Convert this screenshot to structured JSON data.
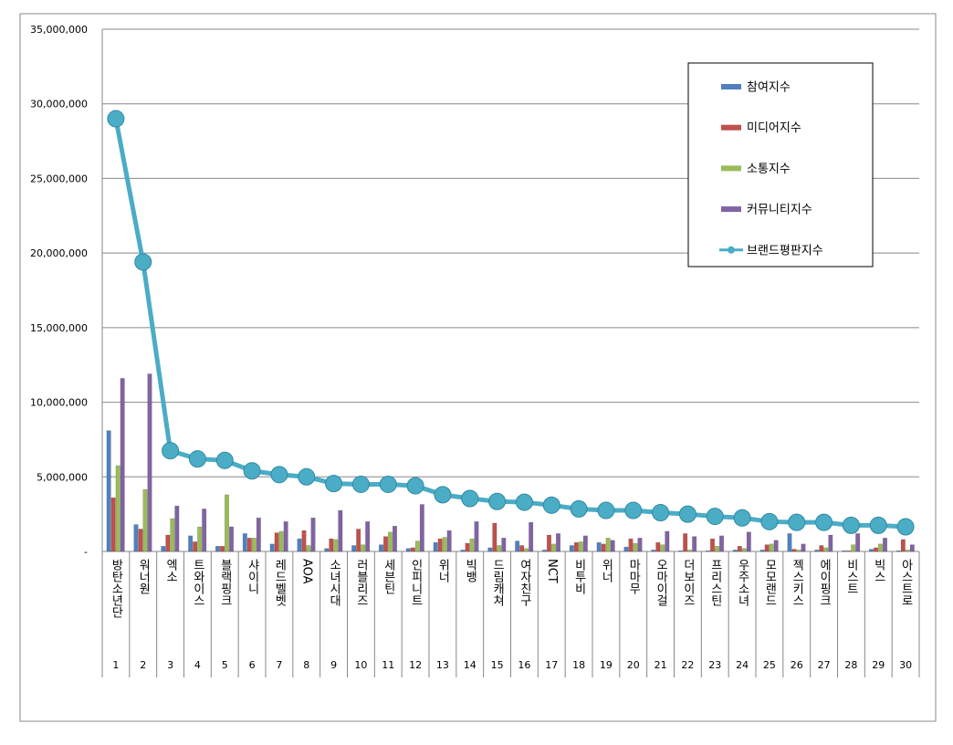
{
  "chart_data": {
    "type": "bar",
    "categories": [
      "방탄소년단",
      "워너원",
      "엑소",
      "트와이스",
      "블랙핑크",
      "샤이니",
      "레드벨벳",
      "AOA",
      "소녀시대",
      "러블리즈",
      "세븐틴",
      "인피니트",
      "위너",
      "빅뱅",
      "드림캐쳐",
      "여자친구",
      "NCT",
      "비투비",
      "위너",
      "마마무",
      "오마이걸",
      "더보이즈",
      "프리스틴",
      "우주소녀",
      "모모랜드",
      "젝스키스",
      "에이핑크",
      "비스트",
      "빅스",
      "아스트로"
    ],
    "rank_labels": [
      1,
      2,
      3,
      4,
      5,
      6,
      7,
      8,
      9,
      10,
      11,
      12,
      13,
      14,
      15,
      16,
      17,
      18,
      19,
      20,
      21,
      22,
      23,
      24,
      25,
      26,
      27,
      28,
      29,
      30
    ],
    "series": [
      {
        "name": "참여지수",
        "color": "#4f81bd",
        "type": "bar",
        "values": [
          8100000,
          1800000,
          350000,
          1050000,
          350000,
          1200000,
          500000,
          850000,
          200000,
          400000,
          450000,
          200000,
          600000,
          100000,
          250000,
          700000,
          100000,
          400000,
          600000,
          300000,
          100000,
          50000,
          50000,
          100000,
          100000,
          1200000,
          100000,
          50000,
          150000,
          50000
        ]
      },
      {
        "name": "미디어지수",
        "color": "#c0504d",
        "type": "bar",
        "values": [
          3600000,
          1500000,
          1100000,
          650000,
          350000,
          900000,
          1250000,
          1400000,
          850000,
          1500000,
          1000000,
          250000,
          850000,
          550000,
          1900000,
          400000,
          1100000,
          600000,
          500000,
          850000,
          600000,
          1200000,
          850000,
          350000,
          450000,
          150000,
          400000,
          50000,
          250000,
          800000
        ]
      },
      {
        "name": "소통지수",
        "color": "#9bbb59",
        "type": "bar",
        "values": [
          5750000,
          4150000,
          2200000,
          1650000,
          3800000,
          900000,
          1350000,
          400000,
          800000,
          450000,
          1300000,
          700000,
          950000,
          850000,
          400000,
          200000,
          500000,
          650000,
          900000,
          550000,
          450000,
          100000,
          350000,
          200000,
          500000,
          100000,
          250000,
          450000,
          500000,
          100000
        ]
      },
      {
        "name": "커뮤니티지수",
        "color": "#8064a2",
        "type": "bar",
        "values": [
          11600000,
          11900000,
          3050000,
          2850000,
          1650000,
          2250000,
          2000000,
          2250000,
          2750000,
          2000000,
          1700000,
          3150000,
          1400000,
          2000000,
          900000,
          1950000,
          1200000,
          1050000,
          750000,
          900000,
          1350000,
          1000000,
          1050000,
          1300000,
          750000,
          500000,
          1100000,
          1200000,
          900000,
          450000
        ]
      },
      {
        "name": "브랜드평판지수",
        "color": "#4bacc6",
        "type": "line",
        "values": [
          29000000,
          19400000,
          6750000,
          6200000,
          6100000,
          5400000,
          5150000,
          5000000,
          4550000,
          4500000,
          4500000,
          4400000,
          3800000,
          3550000,
          3350000,
          3300000,
          3100000,
          2850000,
          2750000,
          2750000,
          2600000,
          2500000,
          2350000,
          2250000,
          2000000,
          1950000,
          1950000,
          1750000,
          1750000,
          1650000
        ]
      }
    ],
    "ylim": [
      0,
      35000000
    ],
    "yticks": [
      {
        "value": 0,
        "label": "-"
      },
      {
        "value": 5000000,
        "label": "5,000,000"
      },
      {
        "value": 10000000,
        "label": "10,000,000"
      },
      {
        "value": 15000000,
        "label": "15,000,000"
      },
      {
        "value": 20000000,
        "label": "20,000,000"
      },
      {
        "value": 25000000,
        "label": "25,000,000"
      },
      {
        "value": 30000000,
        "label": "30,000,000"
      },
      {
        "value": 35000000,
        "label": "35,000,000"
      }
    ],
    "grid": true,
    "legend": "upper right"
  }
}
